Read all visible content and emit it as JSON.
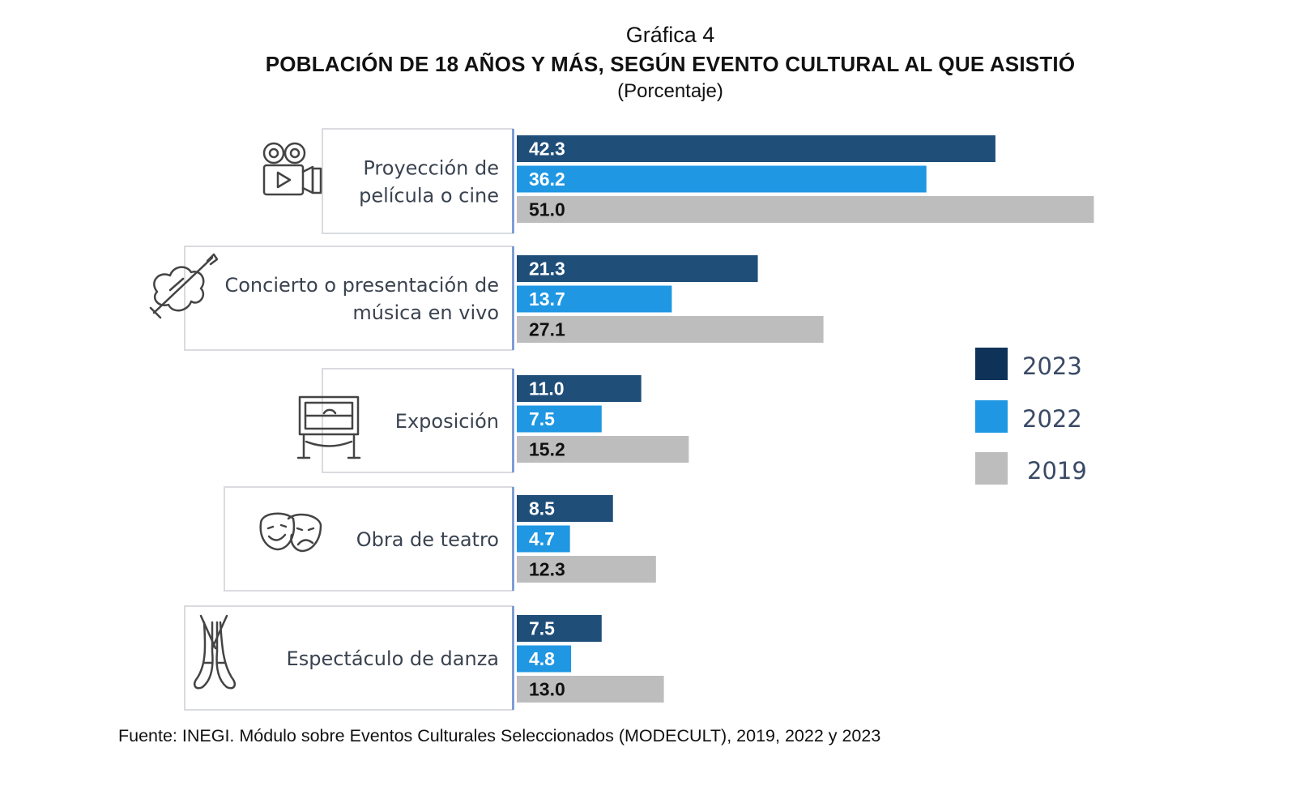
{
  "header": {
    "figure_label": "Gráfica 4",
    "title": "POBLACIÓN DE 18 AÑOS Y MÁS, SEGÚN EVENTO CULTURAL AL QUE ASISTIÓ",
    "units": "(Porcentaje)"
  },
  "source": "Fuente: INEGI. Módulo sobre Eventos Culturales Seleccionados (MODECULT), 2019, 2022 y 2023",
  "colors": {
    "2023": "#1f4e79",
    "2022": "#1f97e3",
    "2019": "#bdbdbd",
    "legend_2023": "#0f3358",
    "label_white": "#ffffff",
    "label_dark": "#111111",
    "box_border": "#d9dbdf",
    "axis_line": "#6a8fd0"
  },
  "chart_data": {
    "type": "bar",
    "orientation": "horizontal",
    "title": "POBLACIÓN DE 18 AÑOS Y MÁS, SEGÚN EVENTO CULTURAL AL QUE ASISTIÓ",
    "subtitle": "(Porcentaje)",
    "categories": [
      {
        "lines": [
          "Proyección de",
          "película o cine"
        ],
        "icon": "film-camera-icon"
      },
      {
        "lines": [
          "Concierto o presentación de",
          "música en vivo"
        ],
        "icon": "violin-icon"
      },
      {
        "lines": [
          "Exposición"
        ],
        "icon": "painting-easel-icon"
      },
      {
        "lines": [
          "Obra de teatro"
        ],
        "icon": "theater-masks-icon"
      },
      {
        "lines": [
          "Espectáculo de danza"
        ],
        "icon": "ballet-shoes-icon"
      }
    ],
    "series": [
      {
        "name": "2023",
        "values": [
          42.3,
          21.3,
          11.0,
          8.5,
          7.5
        ],
        "labels": [
          "42.3",
          "21.3",
          "11.0",
          "8.5",
          "7.5"
        ]
      },
      {
        "name": "2022",
        "values": [
          36.2,
          13.7,
          7.5,
          4.7,
          4.8
        ],
        "labels": [
          "36.2",
          "13.7",
          "7.5",
          "4.7",
          "4.8"
        ]
      },
      {
        "name": "2019",
        "values": [
          51.0,
          27.1,
          15.2,
          12.3,
          13.0
        ],
        "labels": [
          "51.0",
          "27.1",
          "15.2",
          "12.3",
          "13.0"
        ]
      }
    ],
    "legend": [
      "2023",
      "2022",
      "2019"
    ],
    "legend_position": "right",
    "grid": false,
    "xlim": [
      0,
      51
    ]
  }
}
